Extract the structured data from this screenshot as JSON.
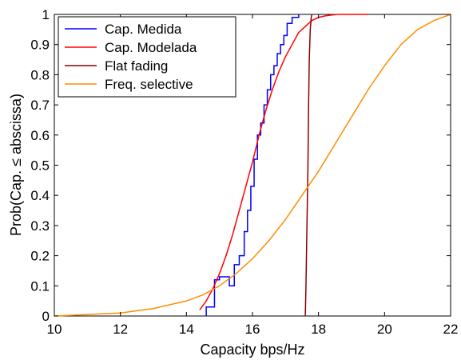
{
  "chart_data": {
    "type": "line",
    "xlabel": "Capacity bps/Hz",
    "ylabel": "Prob(Cap. ≤ abscissa)",
    "xlim": [
      10,
      22
    ],
    "ylim": [
      0,
      1
    ],
    "xticks": [
      "10",
      "12",
      "14",
      "16",
      "18",
      "20",
      "22"
    ],
    "yticks": [
      "0",
      "0.1",
      "0.2",
      "0.3",
      "0.4",
      "0.5",
      "0.6",
      "0.7",
      "0.8",
      "0.9",
      "1"
    ],
    "grid": false,
    "legend_position": "top-left",
    "series": [
      {
        "name": "Cap. Medida",
        "color": "#0000ff",
        "style": "step",
        "x": [
          14.6,
          14.85,
          15.0,
          15.15,
          15.3,
          15.45,
          15.6,
          15.75,
          15.85,
          15.95,
          16.05,
          16.15,
          16.25,
          16.35,
          16.45,
          16.55,
          16.65,
          16.75,
          16.85,
          16.95,
          17.05,
          17.2,
          17.4
        ],
        "y": [
          0.03,
          0.12,
          0.13,
          0.13,
          0.1,
          0.17,
          0.2,
          0.28,
          0.35,
          0.43,
          0.52,
          0.6,
          0.64,
          0.7,
          0.75,
          0.8,
          0.83,
          0.87,
          0.9,
          0.93,
          0.97,
          0.99,
          1.0
        ]
      },
      {
        "name": "Cap. Modelada",
        "color": "#ff0000",
        "style": "line",
        "x": [
          14.4,
          14.6,
          14.8,
          15.0,
          15.2,
          15.4,
          15.6,
          15.8,
          16.0,
          16.2,
          16.4,
          16.6,
          16.8,
          17.0,
          17.2,
          17.4,
          17.6,
          17.8,
          18.0,
          18.2,
          18.4,
          18.6,
          19.0,
          19.5
        ],
        "y": [
          0.02,
          0.05,
          0.09,
          0.14,
          0.2,
          0.27,
          0.35,
          0.43,
          0.51,
          0.6,
          0.68,
          0.75,
          0.81,
          0.86,
          0.9,
          0.94,
          0.96,
          0.98,
          0.99,
          0.995,
          0.998,
          1.0,
          1.0,
          1.0
        ]
      },
      {
        "name": "Flat fading",
        "color": "#8b0000",
        "style": "line",
        "x": [
          17.6,
          17.62,
          17.65,
          17.68,
          17.7,
          17.72,
          17.75,
          17.78,
          17.8
        ],
        "y": [
          0.0,
          0.1,
          0.3,
          0.5,
          0.7,
          0.85,
          0.95,
          0.99,
          1.0
        ]
      },
      {
        "name": "Freq. selective",
        "color": "#ff8c00",
        "style": "line",
        "x": [
          10.0,
          11.0,
          12.0,
          13.0,
          14.0,
          14.5,
          15.0,
          15.5,
          16.0,
          16.5,
          17.0,
          17.5,
          18.0,
          18.5,
          19.0,
          19.5,
          20.0,
          20.5,
          21.0,
          21.5,
          22.0
        ],
        "y": [
          0.0,
          0.005,
          0.01,
          0.025,
          0.05,
          0.07,
          0.1,
          0.14,
          0.19,
          0.25,
          0.32,
          0.4,
          0.48,
          0.57,
          0.66,
          0.75,
          0.83,
          0.9,
          0.95,
          0.98,
          1.0
        ]
      }
    ]
  }
}
